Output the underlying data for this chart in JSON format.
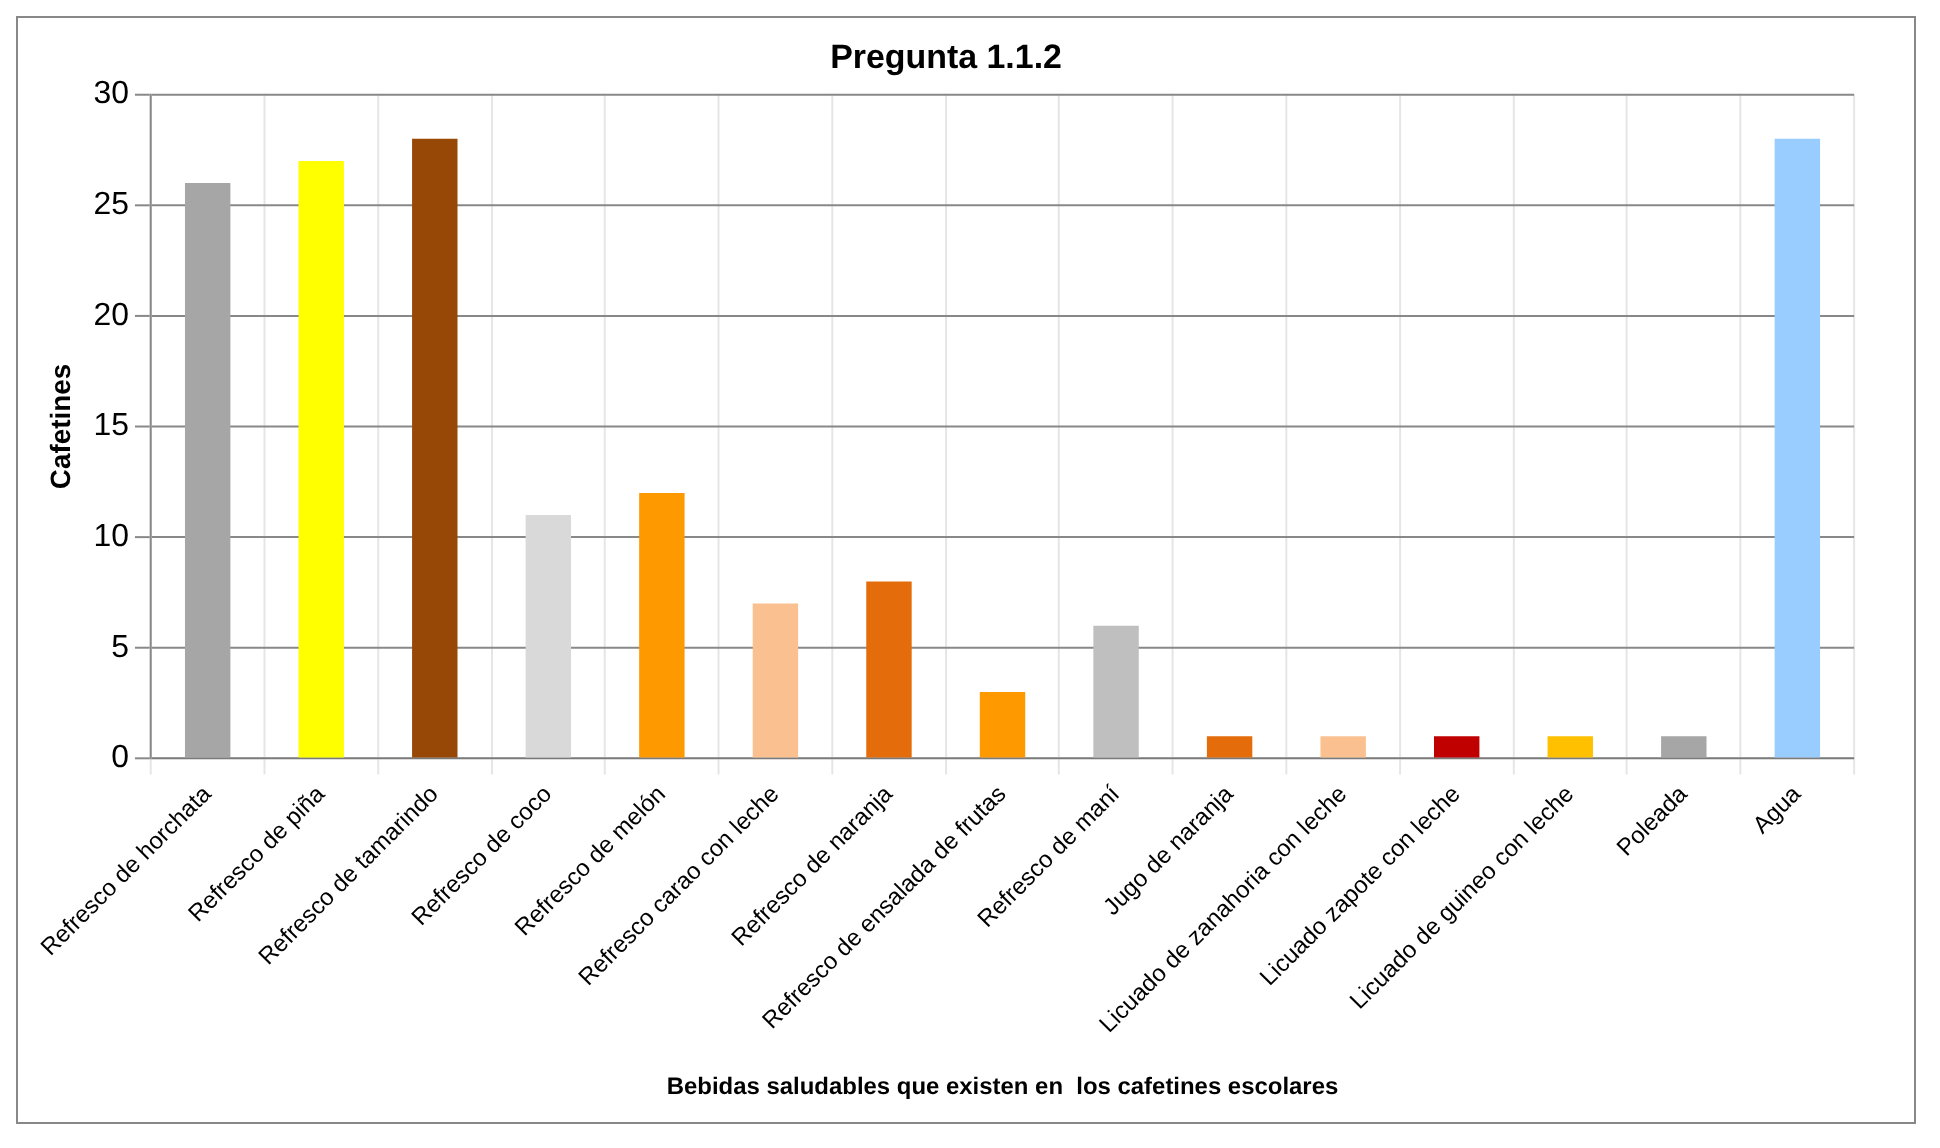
{
  "chart_data": {
    "type": "bar",
    "title": "Pregunta 1.1.2",
    "xlabel": "Bebidas saludables que existen en  los cafetines escolares",
    "ylabel": "Cafetines",
    "categories": [
      "Refresco de horchata",
      "Refresco de piña",
      "Refresco de tamarindo",
      "Refresco de coco",
      "Refresco de melón",
      "Refresco carao con leche",
      "Refresco de naranja",
      "Refresco de ensalada de frutas",
      "Refresco de maní",
      "Jugo de naranja",
      "Licuado de zanahoria con leche",
      "Licuado zapote con leche",
      "Licuado de guineo con leche",
      "Poleada",
      "Agua"
    ],
    "values": [
      26,
      27,
      28,
      11,
      12,
      7,
      8,
      3,
      6,
      1,
      1,
      1,
      1,
      1,
      28
    ],
    "colors": [
      "#a6a6a6",
      "#ffff00",
      "#974706",
      "#d9d9d9",
      "#ff9900",
      "#fac090",
      "#e46c0a",
      "#ff9900",
      "#bfbfbf",
      "#e46c0a",
      "#fac090",
      "#c00000",
      "#ffc000",
      "#a6a6a6",
      "#99ccff"
    ],
    "ylim": [
      0,
      30
    ],
    "yticks": [
      0,
      5,
      10,
      15,
      20,
      25,
      30
    ],
    "grid": true
  }
}
